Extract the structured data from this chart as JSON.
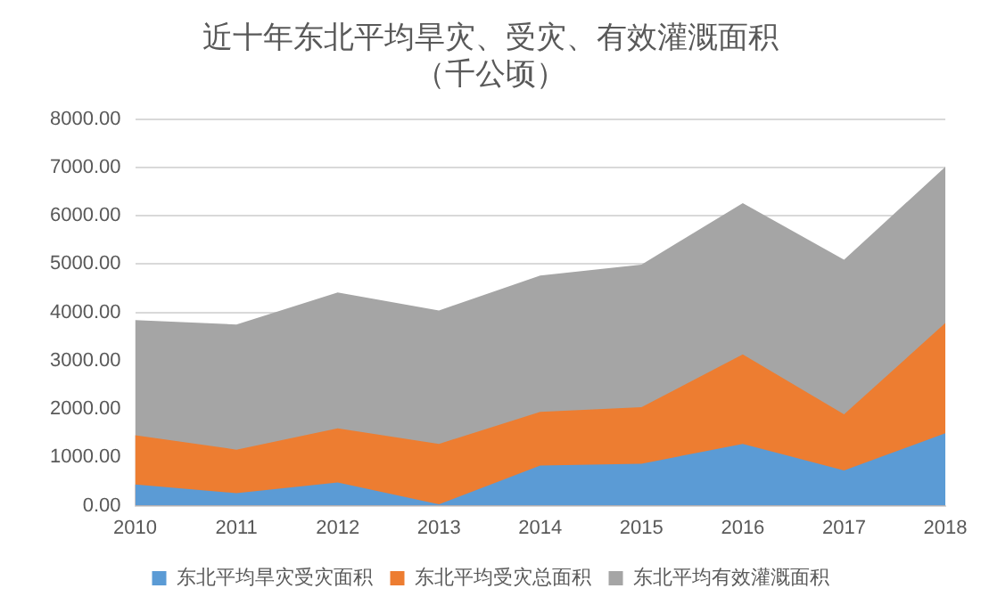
{
  "chart_data": {
    "type": "area",
    "title": "近十年东北平均旱灾、受灾、有效灌溉面积",
    "subtitle": "（千公顷）",
    "categories": [
      "2010",
      "2011",
      "2012",
      "2013",
      "2014",
      "2015",
      "2016",
      "2017",
      "2018"
    ],
    "series": [
      {
        "name": "东北平均旱灾受灾面积",
        "color": "#5b9bd5",
        "values": [
          440,
          260,
          480,
          30,
          830,
          870,
          1280,
          730,
          1500
        ]
      },
      {
        "name": "东北平均受灾总面积",
        "color": "#ed7d31",
        "values": [
          1460,
          1160,
          1600,
          1280,
          1940,
          2040,
          3130,
          1890,
          3780
        ]
      },
      {
        "name": "东北平均有效灌溉面积",
        "color": "#a5a5a5",
        "values": [
          3840,
          3750,
          4410,
          4040,
          4760,
          4990,
          6260,
          5090,
          7010
        ]
      }
    ],
    "ylim": [
      0,
      8000
    ],
    "yticks": [
      {
        "value": 0,
        "label": "0.00"
      },
      {
        "value": 1000,
        "label": "1000.00"
      },
      {
        "value": 2000,
        "label": "2000.00"
      },
      {
        "value": 3000,
        "label": "3000.00"
      },
      {
        "value": 4000,
        "label": "4000.00"
      },
      {
        "value": 5000,
        "label": "5000.00"
      },
      {
        "value": 6000,
        "label": "6000.00"
      },
      {
        "value": 7000,
        "label": "7000.00"
      },
      {
        "value": 8000,
        "label": "8000.00"
      }
    ],
    "grid": "y",
    "legend": "bottom"
  }
}
